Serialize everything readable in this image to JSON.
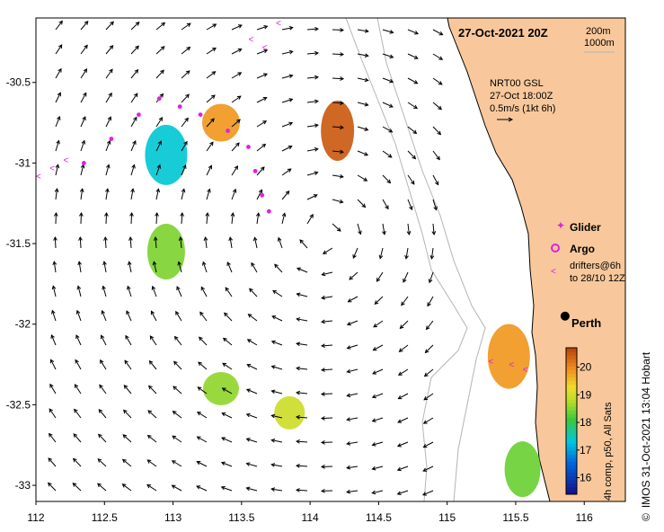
{
  "title": {
    "datetime": "27-Oct-2021 20Z",
    "depth_contour_1": "200m",
    "depth_contour_2": "1000m"
  },
  "current_legend": {
    "line1": "NRT00 GSL",
    "line2": "27-Oct 18:00Z",
    "line3": "0.5m/s (1kt 6h)"
  },
  "markers_legend": {
    "glider": "Glider",
    "argo": "Argo",
    "drifters_line1": "drifters@6h",
    "drifters_line2": "to 28/10 12Z"
  },
  "city": {
    "name": "Perth",
    "lon": 115.86,
    "lat": -31.95
  },
  "colorbar": {
    "ticks": [
      "16",
      "17",
      "18",
      "19",
      "20"
    ],
    "min": 15.4,
    "max": 20.7,
    "label": "4h comp, p50, All Sats"
  },
  "credit": {
    "symbol": "©",
    "text": "IMOS 31-Oct-2021 13:04 Hobart"
  },
  "axes": {
    "x_ticks": [
      "112",
      "112.5",
      "113",
      "113.5",
      "114",
      "114.5",
      "115",
      "115.5",
      "116"
    ],
    "y_ticks": [
      "-30.5",
      "-31",
      "-31.5",
      "-32",
      "-32.5",
      "-33"
    ],
    "lon_range": [
      112,
      116.3
    ],
    "lat_range": [
      -33.1,
      -30.1
    ]
  },
  "colors": {
    "land": "#f8c89c",
    "glider": "#e020e0",
    "drifter": "#e020e0",
    "arrow": "#000000",
    "contour": "#b4b4b4"
  },
  "sst_patches": [
    {
      "lon": 112.95,
      "lat": -30.95,
      "temp": 17.3
    },
    {
      "lon": 112.95,
      "lat": -31.55,
      "temp": 18.4
    },
    {
      "lon": 113.35,
      "lat": -30.75,
      "temp": 19.8
    },
    {
      "lon": 114.2,
      "lat": -30.8,
      "temp": 20.4
    },
    {
      "lon": 113.35,
      "lat": -32.4,
      "temp": 18.5
    },
    {
      "lon": 113.85,
      "lat": -32.55,
      "temp": 18.9
    },
    {
      "lon": 115.45,
      "lat": -32.2,
      "temp": 19.8
    },
    {
      "lon": 115.55,
      "lat": -32.9,
      "temp": 18.3
    }
  ],
  "glider_track": [
    [
      112.35,
      -31.0
    ],
    [
      112.55,
      -30.85
    ],
    [
      112.75,
      -30.7
    ],
    [
      112.9,
      -30.6
    ],
    [
      113.05,
      -30.65
    ],
    [
      113.2,
      -30.7
    ],
    [
      113.4,
      -30.8
    ],
    [
      113.55,
      -30.9
    ],
    [
      113.6,
      -31.05
    ],
    [
      113.65,
      -31.2
    ],
    [
      113.7,
      -31.3
    ]
  ],
  "drifters": [
    [
      112.0,
      -31.1
    ],
    [
      112.1,
      -31.05
    ],
    [
      112.2,
      -31.0
    ],
    [
      113.55,
      -30.25
    ],
    [
      113.65,
      -30.3
    ],
    [
      113.75,
      -30.15
    ],
    [
      115.3,
      -32.25
    ],
    [
      115.45,
      -32.27
    ],
    [
      115.55,
      -32.3
    ]
  ]
}
